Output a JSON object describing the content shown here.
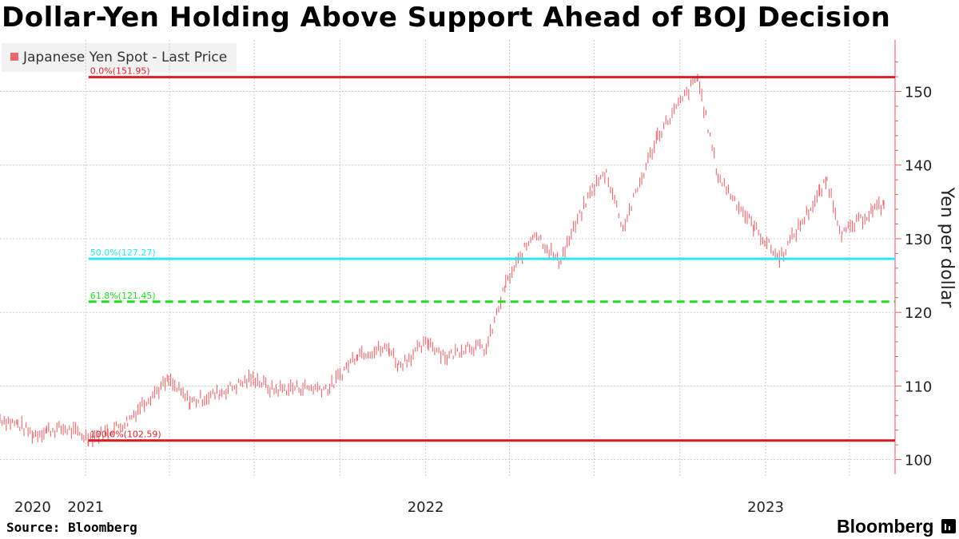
{
  "title": "Dollar-Yen Holding Above Support Ahead of BOJ Decision",
  "source": "Source: Bloomberg",
  "brand": "Bloomberg",
  "colors": {
    "series": "#e8686c",
    "fib_red": "#d81f26",
    "fib_cyan": "#2ee6f0",
    "fib_green": "#22dd22",
    "axis": "#e05a5a",
    "grid": "#cccccc"
  },
  "chart_data": {
    "type": "line",
    "title": "Dollar-Yen Holding Above Support Ahead of BOJ Decision",
    "ylabel": "Yen per dollar",
    "ylim": [
      98,
      157
    ],
    "yticks": [
      100,
      110,
      120,
      130,
      140,
      150
    ],
    "x_tick_labels": [
      "2020",
      "2021",
      "2022",
      "2023"
    ],
    "legend": {
      "position": "top-left",
      "entries": [
        "Japanese Yen Spot - Last Price"
      ]
    },
    "grid": true,
    "series": [
      {
        "name": "Japanese Yen Spot - Last Price",
        "style": "daily high-low bars",
        "points": [
          [
            "2020-10-01",
            105.6
          ],
          [
            "2020-10-20",
            104.8
          ],
          [
            "2020-11-06",
            103.4
          ],
          [
            "2020-11-20",
            104.0
          ],
          [
            "2020-12-10",
            104.2
          ],
          [
            "2021-01-04",
            103.0
          ],
          [
            "2021-01-25",
            103.8
          ],
          [
            "2021-02-15",
            105.2
          ],
          [
            "2021-03-05",
            107.9
          ],
          [
            "2021-03-31",
            110.7
          ],
          [
            "2021-04-23",
            107.8
          ],
          [
            "2021-05-25",
            109.1
          ],
          [
            "2021-06-30",
            111.1
          ],
          [
            "2021-07-20",
            109.5
          ],
          [
            "2021-08-20",
            109.8
          ],
          [
            "2021-09-20",
            109.7
          ],
          [
            "2021-10-20",
            114.5
          ],
          [
            "2021-11-23",
            115.1
          ],
          [
            "2021-12-03",
            112.8
          ],
          [
            "2022-01-04",
            116.0
          ],
          [
            "2022-01-24",
            113.9
          ],
          [
            "2022-02-15",
            115.5
          ],
          [
            "2022-03-07",
            115.0
          ],
          [
            "2022-03-28",
            123.8
          ],
          [
            "2022-04-28",
            131.0
          ],
          [
            "2022-05-24",
            126.8
          ],
          [
            "2022-06-29",
            136.8
          ],
          [
            "2022-07-14",
            139.0
          ],
          [
            "2022-08-01",
            131.5
          ],
          [
            "2022-09-07",
            144.0
          ],
          [
            "2022-10-20",
            151.9
          ],
          [
            "2022-11-11",
            138.5
          ],
          [
            "2022-12-20",
            131.5
          ],
          [
            "2023-01-16",
            127.3
          ],
          [
            "2023-02-28",
            136.2
          ],
          [
            "2023-03-08",
            137.9
          ],
          [
            "2023-03-24",
            130.5
          ],
          [
            "2023-04-26",
            133.9
          ],
          [
            "2023-05-08",
            134.6
          ]
        ]
      }
    ],
    "annotations": [
      {
        "label": "0.0%(151.95)",
        "value": 151.95,
        "style": "solid",
        "color": "#d81f26",
        "x_start": "2021-01-04"
      },
      {
        "label": "50.0%(127.27)",
        "value": 127.27,
        "style": "solid",
        "color": "#2ee6f0",
        "x_start": "2021-01-04"
      },
      {
        "label": "61.8%(121.45)",
        "value": 121.45,
        "style": "dashed",
        "color": "#22dd22",
        "x_start": "2021-01-04"
      },
      {
        "label": "100.0%(102.59)",
        "value": 102.59,
        "style": "solid",
        "color": "#d81f26",
        "x_start": "2021-01-04"
      }
    ]
  }
}
